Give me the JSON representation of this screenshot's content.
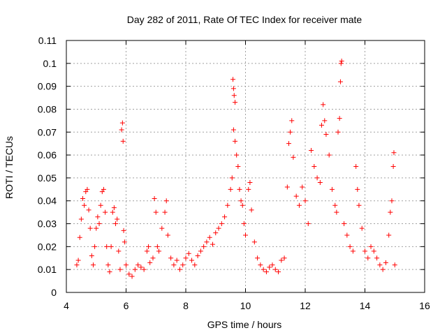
{
  "chart_data": {
    "type": "scatter",
    "title": "Day 282 of 2011, Rate Of TEC Index for receiver mate",
    "xlabel": "GPS time / hours",
    "ylabel": "ROTI / TECUs",
    "xlim": [
      4,
      16
    ],
    "ylim": [
      0,
      0.11
    ],
    "xticks": [
      "4",
      "6",
      "8",
      "10",
      "12",
      "14",
      "16"
    ],
    "yticks": [
      "0",
      "0.01",
      "0.02",
      "0.03",
      "0.04",
      "0.05",
      "0.06",
      "0.07",
      "0.08",
      "0.09",
      "0.1",
      "0.11"
    ],
    "grid": true,
    "legend": "none",
    "marker": "+",
    "color": "#ff0000",
    "series": [
      {
        "points": [
          [
            4.35,
            0.012
          ],
          [
            4.4,
            0.014
          ],
          [
            4.45,
            0.024
          ],
          [
            4.5,
            0.032
          ],
          [
            4.55,
            0.041
          ],
          [
            4.6,
            0.038
          ],
          [
            4.65,
            0.044
          ],
          [
            4.7,
            0.045
          ],
          [
            4.75,
            0.036
          ],
          [
            4.8,
            0.028
          ],
          [
            4.85,
            0.016
          ],
          [
            4.9,
            0.012
          ],
          [
            4.95,
            0.02
          ],
          [
            5.0,
            0.028
          ],
          [
            5.05,
            0.033
          ],
          [
            5.1,
            0.03
          ],
          [
            5.15,
            0.038
          ],
          [
            5.2,
            0.044
          ],
          [
            5.25,
            0.045
          ],
          [
            5.3,
            0.035
          ],
          [
            5.35,
            0.02
          ],
          [
            5.4,
            0.012
          ],
          [
            5.45,
            0.009
          ],
          [
            5.5,
            0.02
          ],
          [
            5.55,
            0.035
          ],
          [
            5.6,
            0.037
          ],
          [
            5.65,
            0.03
          ],
          [
            5.7,
            0.032
          ],
          [
            5.75,
            0.018
          ],
          [
            5.8,
            0.01
          ],
          [
            5.85,
            0.071
          ],
          [
            5.88,
            0.074
          ],
          [
            5.9,
            0.066
          ],
          [
            5.92,
            0.027
          ],
          [
            5.95,
            0.022
          ],
          [
            6.0,
            0.012
          ],
          [
            6.1,
            0.008
          ],
          [
            6.2,
            0.007
          ],
          [
            6.3,
            0.01
          ],
          [
            6.4,
            0.012
          ],
          [
            6.5,
            0.011
          ],
          [
            6.6,
            0.01
          ],
          [
            6.7,
            0.018
          ],
          [
            6.75,
            0.02
          ],
          [
            6.8,
            0.013
          ],
          [
            6.9,
            0.015
          ],
          [
            6.95,
            0.041
          ],
          [
            7.0,
            0.035
          ],
          [
            7.05,
            0.02
          ],
          [
            7.1,
            0.018
          ],
          [
            7.2,
            0.028
          ],
          [
            7.3,
            0.035
          ],
          [
            7.35,
            0.04
          ],
          [
            7.4,
            0.025
          ],
          [
            7.5,
            0.015
          ],
          [
            7.6,
            0.012
          ],
          [
            7.7,
            0.014
          ],
          [
            7.8,
            0.01
          ],
          [
            7.9,
            0.012
          ],
          [
            8.0,
            0.015
          ],
          [
            8.1,
            0.017
          ],
          [
            8.2,
            0.014
          ],
          [
            8.3,
            0.012
          ],
          [
            8.4,
            0.016
          ],
          [
            8.5,
            0.018
          ],
          [
            8.6,
            0.02
          ],
          [
            8.7,
            0.022
          ],
          [
            8.8,
            0.024
          ],
          [
            8.9,
            0.021
          ],
          [
            9.0,
            0.026
          ],
          [
            9.1,
            0.028
          ],
          [
            9.2,
            0.03
          ],
          [
            9.3,
            0.033
          ],
          [
            9.4,
            0.038
          ],
          [
            9.5,
            0.045
          ],
          [
            9.55,
            0.05
          ],
          [
            9.58,
            0.093
          ],
          [
            9.6,
            0.089
          ],
          [
            9.62,
            0.086
          ],
          [
            9.65,
            0.083
          ],
          [
            9.6,
            0.071
          ],
          [
            9.65,
            0.066
          ],
          [
            9.7,
            0.06
          ],
          [
            9.75,
            0.055
          ],
          [
            9.8,
            0.045
          ],
          [
            9.85,
            0.04
          ],
          [
            9.9,
            0.038
          ],
          [
            9.95,
            0.03
          ],
          [
            10.0,
            0.025
          ],
          [
            10.1,
            0.045
          ],
          [
            10.15,
            0.048
          ],
          [
            10.2,
            0.036
          ],
          [
            10.3,
            0.022
          ],
          [
            10.4,
            0.015
          ],
          [
            10.5,
            0.012
          ],
          [
            10.6,
            0.01
          ],
          [
            10.7,
            0.009
          ],
          [
            10.8,
            0.011
          ],
          [
            10.9,
            0.012
          ],
          [
            11.0,
            0.01
          ],
          [
            11.1,
            0.009
          ],
          [
            11.2,
            0.014
          ],
          [
            11.3,
            0.015
          ],
          [
            11.4,
            0.046
          ],
          [
            11.45,
            0.065
          ],
          [
            11.5,
            0.07
          ],
          [
            11.55,
            0.075
          ],
          [
            11.6,
            0.059
          ],
          [
            11.7,
            0.042
          ],
          [
            11.8,
            0.038
          ],
          [
            11.9,
            0.046
          ],
          [
            12.0,
            0.04
          ],
          [
            12.1,
            0.03
          ],
          [
            12.2,
            0.062
          ],
          [
            12.3,
            0.055
          ],
          [
            12.4,
            0.05
          ],
          [
            12.5,
            0.048
          ],
          [
            12.55,
            0.073
          ],
          [
            12.6,
            0.082
          ],
          [
            12.65,
            0.075
          ],
          [
            12.7,
            0.069
          ],
          [
            12.8,
            0.06
          ],
          [
            12.9,
            0.045
          ],
          [
            13.0,
            0.038
          ],
          [
            13.05,
            0.035
          ],
          [
            13.1,
            0.07
          ],
          [
            13.15,
            0.076
          ],
          [
            13.18,
            0.092
          ],
          [
            13.2,
            0.1
          ],
          [
            13.22,
            0.101
          ],
          [
            13.3,
            0.03
          ],
          [
            13.4,
            0.025
          ],
          [
            13.5,
            0.02
          ],
          [
            13.6,
            0.018
          ],
          [
            13.7,
            0.055
          ],
          [
            13.75,
            0.045
          ],
          [
            13.8,
            0.038
          ],
          [
            13.9,
            0.028
          ],
          [
            14.0,
            0.018
          ],
          [
            14.1,
            0.015
          ],
          [
            14.2,
            0.02
          ],
          [
            14.3,
            0.018
          ],
          [
            14.4,
            0.015
          ],
          [
            14.5,
            0.012
          ],
          [
            14.6,
            0.01
          ],
          [
            14.7,
            0.013
          ],
          [
            14.8,
            0.025
          ],
          [
            14.85,
            0.035
          ],
          [
            14.9,
            0.04
          ],
          [
            14.95,
            0.055
          ],
          [
            14.97,
            0.061
          ],
          [
            15.0,
            0.012
          ]
        ]
      }
    ]
  }
}
